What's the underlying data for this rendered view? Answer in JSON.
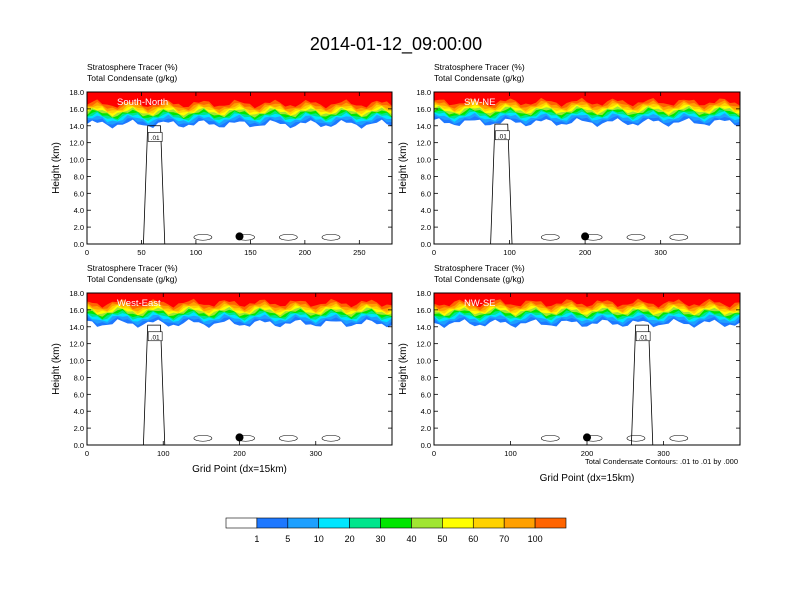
{
  "title": "2014-01-12_09:00:00",
  "field_labels": [
    "Stratosphere Tracer   (%)",
    "Total Condensate   (g/kg)"
  ],
  "contour_note": "Total Condensate Contours: .01 to .01 by .000",
  "colors": {
    "levels": [
      "#ffffff",
      "#1e78ff",
      "#1ea0ff",
      "#00e6ff",
      "#00e68c",
      "#00e600",
      "#a0e632",
      "#ffff00",
      "#ffd200",
      "#ffa000",
      "#ff6400",
      "#ff0000"
    ],
    "background": "#ffffff"
  },
  "colorbar": {
    "labels": [
      "1",
      "5",
      "10",
      "20",
      "30",
      "40",
      "50",
      "60",
      "70",
      "100"
    ]
  },
  "chart_data": [
    {
      "type": "heatmap",
      "panel": "top-left",
      "annotation": "South-North",
      "ylabel": "Height (km)",
      "xlabel": "",
      "xlim": [
        0,
        280
      ],
      "ylim": [
        0,
        18
      ],
      "xticks": [
        "0",
        "50",
        "100",
        "150",
        "200",
        "250"
      ],
      "yticks": [
        "0.0",
        "2.0",
        "4.0",
        "6.0",
        "8.0",
        "10.0",
        "12.0",
        "14.0",
        "16.0",
        "18.0"
      ],
      "marker_x": 140,
      "contour_label": ".01",
      "tracer_base_km": 14.8
    },
    {
      "type": "heatmap",
      "panel": "top-right",
      "annotation": "SW-NE",
      "ylabel": "Height (km)",
      "xlabel": "",
      "xlim": [
        0,
        405
      ],
      "ylim": [
        0,
        18
      ],
      "xticks": [
        "0",
        "100",
        "200",
        "300"
      ],
      "yticks": [
        "0.0",
        "2.0",
        "4.0",
        "6.0",
        "8.0",
        "10.0",
        "12.0",
        "14.0",
        "16.0",
        "18.0"
      ],
      "marker_x": 200,
      "contour_label": ".01",
      "tracer_base_km": 15.0
    },
    {
      "type": "heatmap",
      "panel": "bottom-left",
      "annotation": "West-East",
      "ylabel": "Height (km)",
      "xlabel": "Grid Point (dx=15km)",
      "xlim": [
        0,
        400
      ],
      "ylim": [
        0,
        18
      ],
      "xticks": [
        "0",
        "100",
        "200",
        "300"
      ],
      "yticks": [
        "0.0",
        "2.0",
        "4.0",
        "6.0",
        "8.0",
        "10.0",
        "12.0",
        "14.0",
        "16.0",
        "18.0"
      ],
      "marker_x": 200,
      "contour_label": ".01",
      "tracer_base_km": 15.0
    },
    {
      "type": "heatmap",
      "panel": "bottom-right",
      "annotation": "NW-SE",
      "ylabel": "Height (km)",
      "xlabel": "Grid Point (dx=15km)",
      "xlim": [
        0,
        400
      ],
      "ylim": [
        0,
        18
      ],
      "xticks": [
        "0",
        "100",
        "200",
        "300"
      ],
      "yticks": [
        "0.0",
        "2.0",
        "4.0",
        "6.0",
        "8.0",
        "10.0",
        "12.0",
        "14.0",
        "16.0",
        "18.0"
      ],
      "marker_x": 200,
      "contour_label": ".01",
      "tracer_base_km": 15.0
    }
  ]
}
